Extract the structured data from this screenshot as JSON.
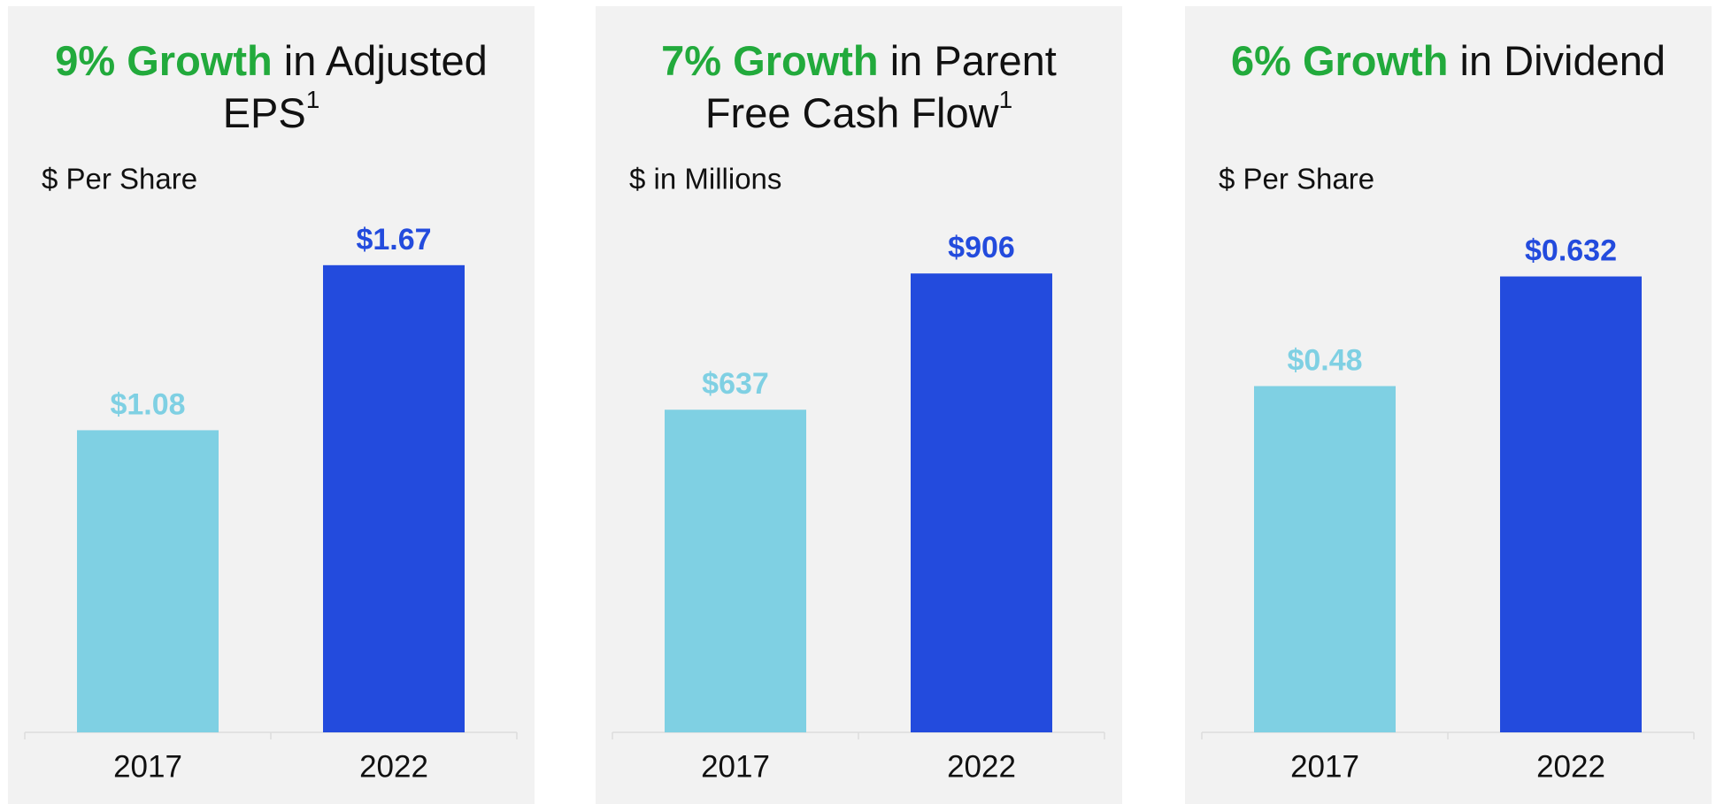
{
  "chart_data": [
    {
      "type": "bar",
      "title_highlight": "9% Growth",
      "title": "in Adjusted EPS",
      "title_note": "1",
      "subtitle": "$ Per Share",
      "categories": [
        "2017",
        "2022"
      ],
      "values": [
        1.08,
        1.67
      ],
      "value_labels": [
        "$1.08",
        "$1.67"
      ],
      "colors": [
        "#7fd0e3",
        "#234bdd"
      ],
      "highlight_color": "#22aa3c",
      "ylim": [
        0,
        1.72
      ]
    },
    {
      "type": "bar",
      "title_highlight": "7% Growth",
      "title": "in Parent Free Cash Flow",
      "title_note": "1",
      "subtitle": "$ in Millions",
      "categories": [
        "2017",
        "2022"
      ],
      "values": [
        637,
        906
      ],
      "value_labels": [
        "$637",
        "$906"
      ],
      "colors": [
        "#7fd0e3",
        "#234bdd"
      ],
      "highlight_color": "#22aa3c",
      "ylim": [
        0,
        950
      ]
    },
    {
      "type": "bar",
      "title_highlight": "6% Growth",
      "title": "in Dividend",
      "subtitle": "$ Per Share",
      "categories": [
        "2017",
        "2022"
      ],
      "values": [
        0.48,
        0.632
      ],
      "value_labels": [
        "$0.48",
        "$0.632"
      ],
      "colors": [
        "#7fd0e3",
        "#234bdd"
      ],
      "highlight_color": "#22aa3c",
      "ylim": [
        0,
        0.667
      ]
    }
  ]
}
